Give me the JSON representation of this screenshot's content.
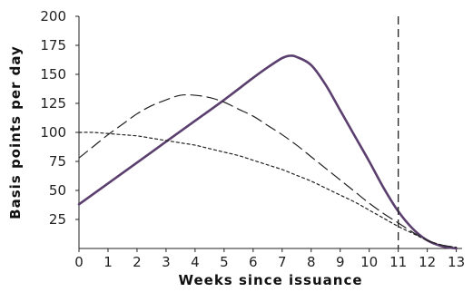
{
  "chart_data": {
    "type": "line",
    "title": "",
    "xlabel": "Weeks since issuance",
    "ylabel": "Basis points per day",
    "xlim": [
      0,
      13.2
    ],
    "ylim": [
      0,
      200
    ],
    "x_ticks": [
      "0",
      "1",
      "2",
      "3",
      "4",
      "5",
      "6",
      "7",
      "8",
      "9",
      "10",
      "11",
      "12",
      "13"
    ],
    "y_ticks": [
      "25",
      "50",
      "75",
      "100",
      "125",
      "150",
      "175",
      "200"
    ],
    "grid": false,
    "legend": "none",
    "vertical_marker": {
      "x": 11,
      "style": "dashed"
    },
    "series": [
      {
        "style": "solid",
        "color": "#5b3f6e",
        "x": [
          0,
          1,
          2,
          3,
          4,
          5,
          6,
          6.5,
          7,
          7.25,
          7.5,
          8,
          8.5,
          9,
          9.5,
          10,
          10.5,
          11,
          11.5,
          12,
          12.5,
          13
        ],
        "y": [
          38,
          56,
          74,
          92,
          110,
          128,
          147,
          156,
          164,
          166,
          165,
          158,
          141,
          119,
          97,
          75,
          52,
          32,
          17,
          7,
          2,
          0
        ]
      },
      {
        "style": "long-dash",
        "color": "#222222",
        "x": [
          0,
          0.5,
          1,
          1.5,
          2,
          2.5,
          3,
          3.5,
          4,
          4.5,
          5,
          5.5,
          6,
          6.5,
          7,
          7.5,
          8,
          8.5,
          9,
          9.5,
          10,
          10.5,
          11,
          11.5,
          12,
          12.5,
          13
        ],
        "y": [
          78,
          88,
          98,
          107,
          116,
          123,
          128,
          132,
          132,
          130,
          126,
          120,
          114,
          106,
          98,
          89,
          79,
          69,
          59,
          49,
          39,
          30,
          22,
          14,
          7,
          3,
          1
        ]
      },
      {
        "style": "short-dash",
        "color": "#222222",
        "x": [
          0,
          0.5,
          1,
          1.5,
          2,
          2.5,
          3,
          3.5,
          4,
          4.5,
          5,
          5.5,
          6,
          6.5,
          7,
          7.5,
          8,
          8.5,
          9,
          9.5,
          10,
          10.5,
          11,
          11.5,
          12,
          12.5,
          13
        ],
        "y": [
          100,
          100,
          99,
          98,
          97,
          95,
          93,
          91,
          89,
          86,
          83,
          80,
          76,
          72,
          68,
          63,
          58,
          52,
          46,
          40,
          33,
          26,
          19,
          13,
          7,
          3,
          1
        ]
      }
    ]
  }
}
